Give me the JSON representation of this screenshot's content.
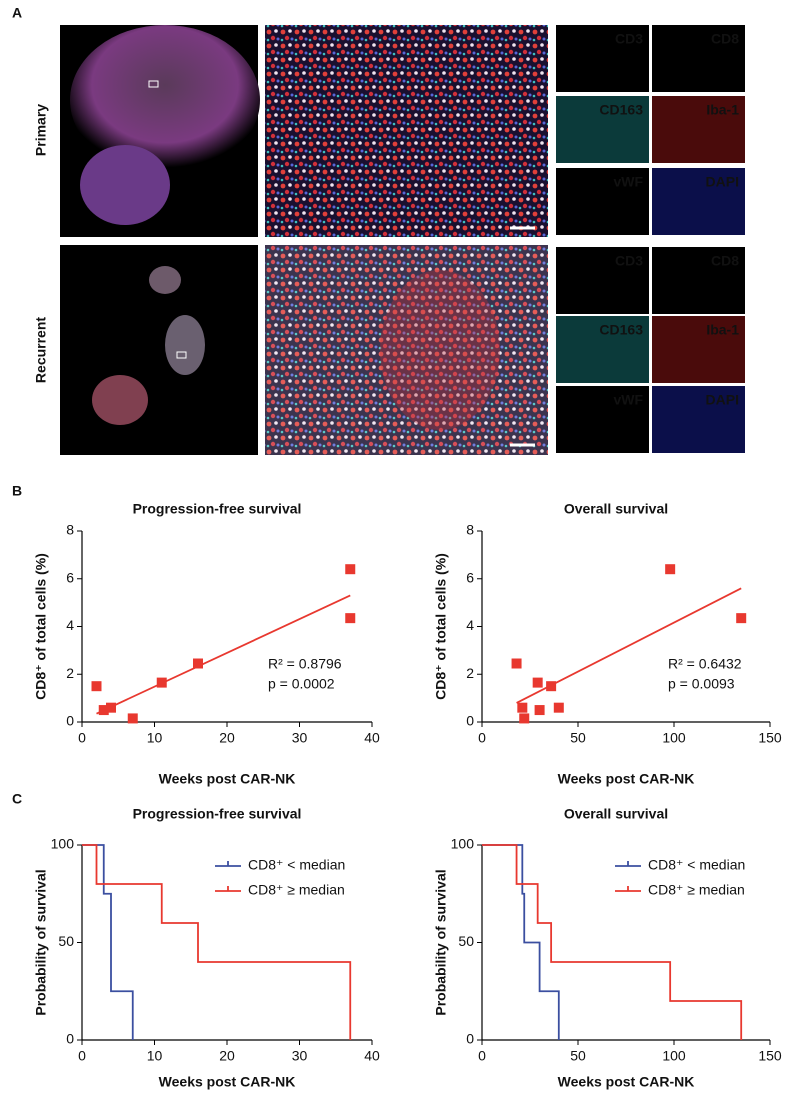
{
  "panel_labels": [
    "A",
    "B",
    "C"
  ],
  "microscopy": {
    "rows": [
      {
        "label": "Primary",
        "channels": [
          {
            "name": "CD3",
            "color": "#6cc04a"
          },
          {
            "name": "CD8",
            "color": "#f2d25a"
          },
          {
            "name": "CD163",
            "color": "#3cc7c0"
          },
          {
            "name": "Iba-1",
            "color": "#e8382f"
          },
          {
            "name": "vWF",
            "color": "#c44fc4"
          },
          {
            "name": "DAPI",
            "color": "#4d5fd6"
          }
        ]
      },
      {
        "label": "Recurrent",
        "channels": [
          {
            "name": "CD3",
            "color": "#6cc04a"
          },
          {
            "name": "CD8",
            "color": "#f2d25a"
          },
          {
            "name": "CD163",
            "color": "#3cc7c0"
          },
          {
            "name": "Iba-1",
            "color": "#e8382f"
          },
          {
            "name": "vWF",
            "color": "#c44fc4"
          },
          {
            "name": "DAPI",
            "color": "#4d5fd6"
          }
        ]
      }
    ]
  },
  "chart_data": [
    {
      "type": "scatter",
      "title": "Progression-free survival",
      "x_label": "Weeks post CAR-NK",
      "y_label": "CD8⁺ of total cells (%)",
      "xlim": [
        0,
        40
      ],
      "ylim": [
        0,
        8
      ],
      "xticks": [
        0,
        10,
        20,
        30,
        40
      ],
      "yticks": [
        0,
        2,
        4,
        6,
        8
      ],
      "series": [
        {
          "color": "#e8382f",
          "x": [
            2,
            3,
            4,
            7,
            11,
            16,
            37,
            37
          ],
          "values": [
            1.5,
            0.5,
            0.6,
            0.15,
            1.65,
            2.45,
            6.4,
            4.35
          ]
        }
      ],
      "fit": {
        "color": "#e8382f",
        "x": [
          2,
          37
        ],
        "values": [
          0.35,
          5.3
        ]
      },
      "annotations": [
        "R² = 0.8796",
        "p = 0.0002"
      ]
    },
    {
      "type": "scatter",
      "title": "Overall survival",
      "x_label": "Weeks post CAR-NK",
      "y_label": "CD8⁺ of total cells (%)",
      "xlim": [
        0,
        150
      ],
      "ylim": [
        0,
        8
      ],
      "xticks": [
        0,
        50,
        100,
        150
      ],
      "yticks": [
        0,
        2,
        4,
        6,
        8
      ],
      "series": [
        {
          "color": "#e8382f",
          "x": [
            18,
            21,
            22,
            29,
            30,
            36,
            40,
            98,
            135
          ],
          "values": [
            2.45,
            0.6,
            0.15,
            1.65,
            0.5,
            1.5,
            0.6,
            6.4,
            4.35
          ]
        }
      ],
      "fit": {
        "color": "#e8382f",
        "x": [
          18,
          135
        ],
        "values": [
          0.8,
          5.6
        ]
      },
      "annotations": [
        "R² = 0.6432",
        "p = 0.0093"
      ]
    },
    {
      "type": "step",
      "title": "Progression-free survival",
      "x_label": "Weeks post CAR-NK",
      "y_label": "Probability of survival",
      "xlim": [
        0,
        40
      ],
      "ylim": [
        0,
        100
      ],
      "xticks": [
        0,
        10,
        20,
        30,
        40
      ],
      "yticks": [
        0,
        50,
        100
      ],
      "series": [
        {
          "name": "CD8⁺ < median",
          "color": "#3b4fa0",
          "x": [
            0,
            3,
            4,
            7
          ],
          "values": [
            100,
            75,
            25,
            0
          ]
        },
        {
          "name": "CD8⁺ ≥ median",
          "color": "#e8382f",
          "x": [
            0,
            2,
            11,
            16,
            37
          ],
          "values": [
            100,
            80,
            60,
            40,
            0
          ]
        }
      ]
    },
    {
      "type": "step",
      "title": "Overall survival",
      "x_label": "Weeks post CAR-NK",
      "y_label": "Probability of survival",
      "xlim": [
        0,
        150
      ],
      "ylim": [
        0,
        100
      ],
      "xticks": [
        0,
        50,
        100,
        150
      ],
      "yticks": [
        0,
        50,
        100
      ],
      "series": [
        {
          "name": "CD8⁺ < median",
          "color": "#3b4fa0",
          "x": [
            0,
            21,
            22,
            30,
            40
          ],
          "values": [
            100,
            75,
            50,
            25,
            0
          ]
        },
        {
          "name": "CD8⁺ ≥ median",
          "color": "#e8382f",
          "x": [
            0,
            18,
            29,
            36,
            98,
            135
          ],
          "values": [
            100,
            80,
            60,
            40,
            20,
            0
          ]
        }
      ]
    }
  ]
}
